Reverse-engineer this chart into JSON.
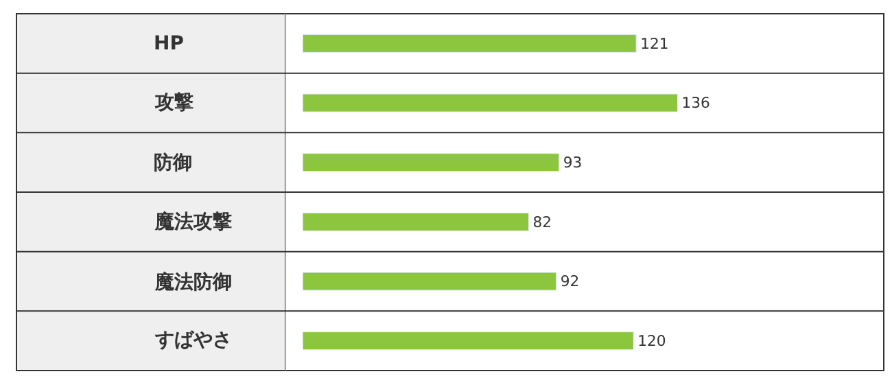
{
  "chart_data": {
    "type": "bar",
    "orientation": "horizontal",
    "categories": [
      "HP",
      "攻撃",
      "防御",
      "魔法攻撃",
      "魔法防御",
      "すばやさ"
    ],
    "values": [
      121,
      136,
      93,
      82,
      92,
      120
    ],
    "color": "#8cc63f",
    "data_labels": true
  }
}
